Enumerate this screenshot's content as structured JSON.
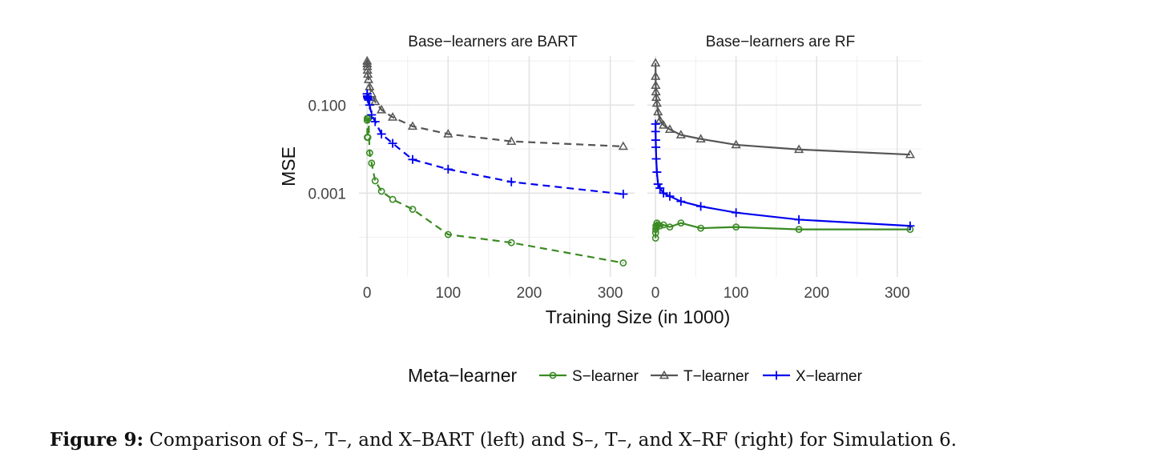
{
  "chart_data": {
    "type": "line",
    "yscale": "log10",
    "ylabel": "MSE",
    "xlabel": "Training Size (in 1000)",
    "xlim": [
      0,
      316
    ],
    "ylim": [
      1.25e-05,
      1.3
    ],
    "x_ticks": [
      0,
      100,
      200,
      300
    ],
    "y_ticks": [
      0.1,
      0.001
    ],
    "y_tick_labels": [
      "0.100",
      "0.001"
    ],
    "grid": true,
    "legend": {
      "title": "Meta−learner",
      "placement": "bottom",
      "entries": [
        "S−learner",
        "T−learner",
        "X−learner"
      ]
    },
    "colors": {
      "S": "#3a8a22",
      "T": "#555555",
      "X": "#0000ee"
    },
    "panels": [
      {
        "title": "Base−learners are BART",
        "linestyle": "dashed",
        "series": [
          {
            "name": "S−learner",
            "key": "S",
            "marker": "circle",
            "x": [
              0.1,
              0.18,
              0.32,
              0.56,
              1,
              1.78,
              3.16,
              5.62,
              10,
              17.8,
              31.6,
              56.2,
              100,
              178,
              316
            ],
            "y": [
              0.045,
              0.05,
              0.0185,
              0.0185,
              0.0185,
              0.05,
              0.0082,
              0.0048,
              0.0019,
              0.0011,
              0.00072,
              0.00043,
              0.000115,
              7.5e-05,
              2.6e-05
            ]
          },
          {
            "name": "T−learner",
            "key": "T",
            "marker": "triangle",
            "x": [
              0.1,
              0.18,
              0.32,
              0.56,
              1,
              1.78,
              3.16,
              5.62,
              10,
              17.8,
              31.6,
              56.2,
              100,
              178,
              316
            ],
            "y": [
              1.0,
              0.87,
              0.75,
              0.62,
              0.5,
              0.38,
              0.26,
              0.18,
              0.12,
              0.078,
              0.053,
              0.033,
              0.022,
              0.015,
              0.0115
            ]
          },
          {
            "name": "X−learner",
            "key": "X",
            "marker": "plus",
            "x": [
              0.1,
              0.18,
              0.32,
              0.56,
              1,
              1.78,
              3.16,
              5.62,
              10,
              17.8,
              31.6,
              56.2,
              100,
              178,
              316
            ],
            "y": [
              0.18,
              0.18,
              0.16,
              0.15,
              0.14,
              0.13,
              0.1,
              0.06,
              0.042,
              0.022,
              0.0135,
              0.0058,
              0.0035,
              0.0018,
              0.00095
            ]
          }
        ]
      },
      {
        "title": "Base−learners are RF",
        "linestyle": "solid",
        "series": [
          {
            "name": "S−learner",
            "key": "S",
            "marker": "circle",
            "x": [
              0.1,
              0.18,
              0.32,
              0.56,
              1,
              1.78,
              3.16,
              5.62,
              10,
              17.8,
              31.6,
              56.2,
              100,
              178,
              316
            ],
            "y": [
              9.5e-05,
              0.000125,
              0.00015,
              0.00018,
              0.00017,
              0.00021,
              0.00019,
              0.00018,
              0.00019,
              0.00017,
              0.00021,
              0.00016,
              0.00017,
              0.00015,
              0.00015
            ]
          },
          {
            "name": "T−learner",
            "key": "T",
            "marker": "triangle",
            "x": [
              0.1,
              0.18,
              0.32,
              0.56,
              1,
              1.78,
              3.16,
              5.62,
              10,
              17.8,
              31.6,
              56.2,
              100,
              178,
              316
            ],
            "y": [
              0.9,
              0.45,
              0.28,
              0.2,
              0.15,
              0.11,
              0.07,
              0.045,
              0.035,
              0.028,
              0.021,
              0.017,
              0.0125,
              0.0098,
              0.0075
            ]
          },
          {
            "name": "X−learner",
            "key": "X",
            "marker": "plus",
            "x": [
              0.1,
              0.18,
              0.32,
              0.56,
              1,
              1.78,
              3.16,
              5.62,
              10,
              17.8,
              31.6,
              56.2,
              100,
              178,
              316
            ],
            "y": [
              0.037,
              0.025,
              0.016,
              0.011,
              0.006,
              0.003,
              0.0016,
              0.0013,
              0.001,
              0.00085,
              0.00065,
              0.0005,
              0.00036,
              0.00025,
              0.00018
            ]
          }
        ]
      }
    ]
  },
  "caption": {
    "label": "Figure 9:",
    "text": " Comparison of S–, T–, and X–BART (left) and S–, T–, and X–RF (right) for Simulation 6."
  }
}
